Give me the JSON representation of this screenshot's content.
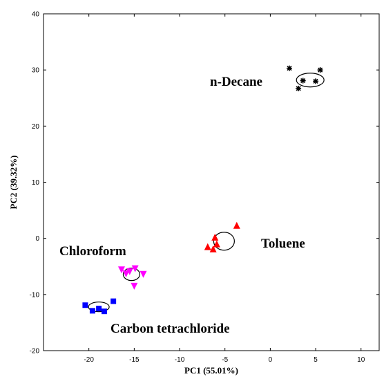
{
  "chart_data": {
    "type": "scatter",
    "title": "",
    "xlabel": "PC1 (55.01%)",
    "ylabel": "PC2 (39.32%)",
    "xlim": [
      -25,
      12
    ],
    "ylim": [
      -20,
      40
    ],
    "xticks": [
      -20,
      -15,
      -10,
      -5,
      0,
      5,
      10
    ],
    "yticks": [
      -20,
      -10,
      0,
      10,
      20,
      30,
      40
    ],
    "grid": false,
    "legend": "none",
    "series": [
      {
        "name": "n-Decane",
        "marker": "star",
        "color": "#000000",
        "points": [
          {
            "x": 2.1,
            "y": 30.3
          },
          {
            "x": 3.1,
            "y": 26.7
          },
          {
            "x": 3.6,
            "y": 28.1
          },
          {
            "x": 5.0,
            "y": 28.0
          },
          {
            "x": 5.5,
            "y": 30.0
          }
        ],
        "centroid_ellipse": {
          "cx": 4.4,
          "cy": 28.2
        }
      },
      {
        "name": "Toluene",
        "marker": "triangle-up",
        "color": "#ff0000",
        "points": [
          {
            "x": -3.7,
            "y": 2.2
          },
          {
            "x": -6.1,
            "y": 0.1
          },
          {
            "x": -5.9,
            "y": -1.1
          },
          {
            "x": -6.9,
            "y": -1.6
          },
          {
            "x": -6.3,
            "y": -2.0
          }
        ],
        "centroid_ellipse": {
          "cx": -5.1,
          "cy": -0.5
        }
      },
      {
        "name": "Chloroform",
        "marker": "triangle-down",
        "color": "#ff00ff",
        "points": [
          {
            "x": -16.4,
            "y": -5.5
          },
          {
            "x": -15.9,
            "y": -6.2
          },
          {
            "x": -15.5,
            "y": -5.8
          },
          {
            "x": -14.9,
            "y": -5.3
          },
          {
            "x": -14.0,
            "y": -6.3
          },
          {
            "x": -15.0,
            "y": -8.4
          }
        ],
        "centroid_ellipse": {
          "cx": -15.3,
          "cy": -6.4
        }
      },
      {
        "name": "Carbon tetrachloride",
        "marker": "square",
        "color": "#0000ff",
        "points": [
          {
            "x": -20.4,
            "y": -11.9
          },
          {
            "x": -19.6,
            "y": -12.9
          },
          {
            "x": -18.9,
            "y": -12.5
          },
          {
            "x": -18.3,
            "y": -13.0
          },
          {
            "x": -17.3,
            "y": -11.2
          }
        ],
        "centroid_ellipse": {
          "cx": -18.9,
          "cy": -12.2
        }
      }
    ],
    "annotations": [
      {
        "text": "n-Decane",
        "series": "n-Decane"
      },
      {
        "text": "Toluene",
        "series": "Toluene"
      },
      {
        "text": "Chloroform",
        "series": "Chloroform"
      },
      {
        "text": "Carbon tetrachloride",
        "series": "Carbon tetrachloride"
      }
    ]
  }
}
